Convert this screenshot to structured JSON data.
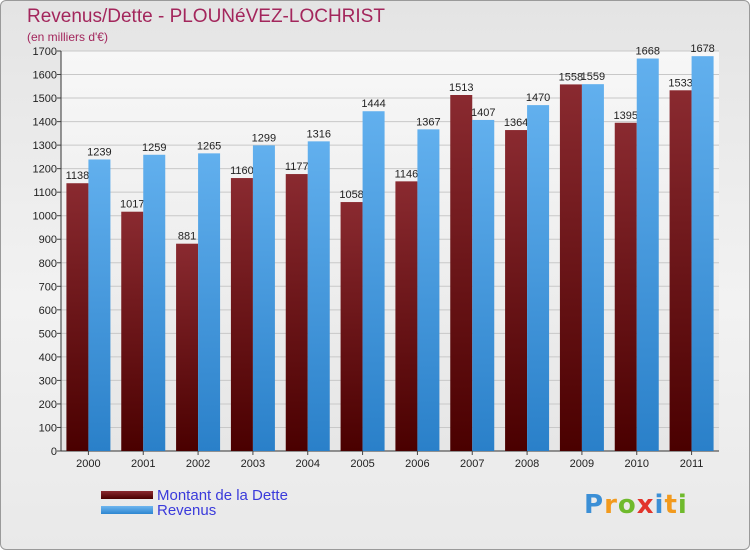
{
  "header": {
    "title": "Revenus/Dette - PLOUNéVEZ-LOCHRIST",
    "subtitle": "(en milliers d'€)"
  },
  "chart_data": {
    "type": "bar",
    "categories": [
      "2000",
      "2001",
      "2002",
      "2003",
      "2004",
      "2005",
      "2006",
      "2007",
      "2008",
      "2009",
      "2010",
      "2011"
    ],
    "series": [
      {
        "name": "Montant de la Dette",
        "color": "#7a1a22",
        "values": [
          1138,
          1017,
          881,
          1160,
          1177,
          1058,
          1146,
          1513,
          1364,
          1558,
          1395,
          1533
        ]
      },
      {
        "name": "Revenus",
        "color": "#4aa3e6",
        "values": [
          1239,
          1259,
          1265,
          1299,
          1316,
          1444,
          1367,
          1407,
          1470,
          1559,
          1668,
          1678
        ]
      }
    ],
    "ylim": [
      0,
      1700
    ],
    "yticks": [
      0,
      100,
      200,
      300,
      400,
      500,
      600,
      700,
      800,
      900,
      1000,
      1100,
      1200,
      1300,
      1400,
      1500,
      1600,
      1700
    ],
    "grid": true,
    "legend_position": "bottom-left"
  },
  "legend": {
    "items": [
      "Montant de la Dette",
      "Revenus"
    ]
  },
  "logo": {
    "letters": [
      "P",
      "r",
      "o",
      "x",
      "i",
      "t",
      "i"
    ]
  }
}
